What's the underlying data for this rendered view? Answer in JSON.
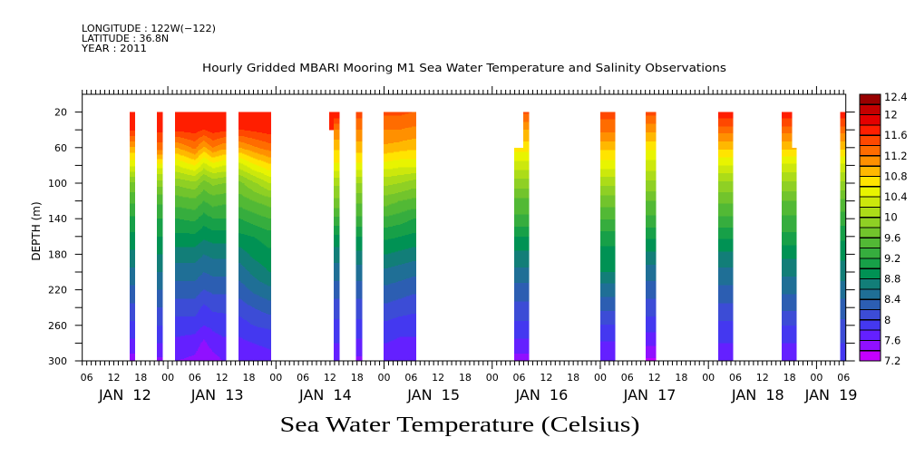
{
  "header": {
    "longitude": "LONGITUDE : 122W(−122)",
    "latitude": "LATITUDE : 36.8N",
    "year": "YEAR : 2011"
  },
  "chart_data": {
    "type": "heatmap",
    "title": "Hourly Gridded MBARI Mooring M1 Sea Water Temperature and Salinity Observations",
    "variable_label": "Sea Water Temperature (Celsius)",
    "xlabel": "",
    "ylabel": "DEPTH (m)",
    "x_unit": "hours since 2011-01-12 00:00",
    "xlim": [
      5,
      174.5
    ],
    "ylim": [
      0,
      300
    ],
    "y_inverted": true,
    "grid": false,
    "legend": "colorbar-right",
    "x_minor_tick_hours": 1,
    "x_major_tick_hours": 24,
    "x_ticks": [
      {
        "hour": 6,
        "label": "06"
      },
      {
        "hour": 12,
        "label": "12"
      },
      {
        "hour": 18,
        "label": "18"
      },
      {
        "hour": 24,
        "label": "00"
      },
      {
        "hour": 30,
        "label": "06"
      },
      {
        "hour": 36,
        "label": "12"
      },
      {
        "hour": 42,
        "label": "18"
      },
      {
        "hour": 48,
        "label": "00"
      },
      {
        "hour": 54,
        "label": "06"
      },
      {
        "hour": 60,
        "label": "12"
      },
      {
        "hour": 66,
        "label": "18"
      },
      {
        "hour": 72,
        "label": "00"
      },
      {
        "hour": 78,
        "label": "06"
      },
      {
        "hour": 84,
        "label": "12"
      },
      {
        "hour": 90,
        "label": "18"
      },
      {
        "hour": 96,
        "label": "00"
      },
      {
        "hour": 102,
        "label": "06"
      },
      {
        "hour": 108,
        "label": "12"
      },
      {
        "hour": 114,
        "label": "18"
      },
      {
        "hour": 120,
        "label": "00"
      },
      {
        "hour": 126,
        "label": "06"
      },
      {
        "hour": 132,
        "label": "12"
      },
      {
        "hour": 138,
        "label": "18"
      },
      {
        "hour": 144,
        "label": "00"
      },
      {
        "hour": 150,
        "label": "06"
      },
      {
        "hour": 156,
        "label": "12"
      },
      {
        "hour": 162,
        "label": "18"
      },
      {
        "hour": 168,
        "label": "00"
      },
      {
        "hour": 174,
        "label": "06"
      }
    ],
    "day_labels": [
      {
        "start_hour": 0,
        "label": "JAN 12"
      },
      {
        "start_hour": 24,
        "label": "JAN 13"
      },
      {
        "start_hour": 48,
        "label": "JAN 14"
      },
      {
        "start_hour": 72,
        "label": "JAN 15"
      },
      {
        "start_hour": 96,
        "label": "JAN 16"
      },
      {
        "start_hour": 120,
        "label": "JAN 17"
      },
      {
        "start_hour": 144,
        "label": "JAN 18"
      },
      {
        "start_hour": 168,
        "label": "JAN 19"
      }
    ],
    "y_ticks": [
      20,
      40,
      60,
      80,
      100,
      120,
      140,
      160,
      180,
      200,
      220,
      240,
      260,
      280,
      300
    ],
    "y_tick_labels": [
      {
        "depth": 20,
        "label": "20"
      },
      {
        "depth": 60,
        "label": "60"
      },
      {
        "depth": 100,
        "label": "100"
      },
      {
        "depth": 140,
        "label": "140"
      },
      {
        "depth": 180,
        "label": "180"
      },
      {
        "depth": 220,
        "label": "220"
      },
      {
        "depth": 260,
        "label": "260"
      },
      {
        "depth": 300,
        "label": "300"
      }
    ],
    "colorbar": {
      "min": 7.2,
      "max": 12.4,
      "step": 0.2,
      "labels": [
        {
          "value": 7.2,
          "label": "7.2"
        },
        {
          "value": 7.6,
          "label": "7.6"
        },
        {
          "value": 8.0,
          "label": "8"
        },
        {
          "value": 8.4,
          "label": "8.4"
        },
        {
          "value": 8.8,
          "label": "8.8"
        },
        {
          "value": 9.2,
          "label": "9.2"
        },
        {
          "value": 9.6,
          "label": "9.6"
        },
        {
          "value": 10.0,
          "label": "10"
        },
        {
          "value": 10.4,
          "label": "10.4"
        },
        {
          "value": 10.8,
          "label": "10.8"
        },
        {
          "value": 11.2,
          "label": "11.2"
        },
        {
          "value": 11.6,
          "label": "11.6"
        },
        {
          "value": 12.0,
          "label": "12"
        },
        {
          "value": 12.4,
          "label": "12.4"
        }
      ],
      "colors": [
        "#c400ff",
        "#9010ff",
        "#6420ff",
        "#4438f0",
        "#3c4cd6",
        "#2c5eb2",
        "#1f6f96",
        "#127e78",
        "#009254",
        "#17a048",
        "#36ad3e",
        "#52b935",
        "#72c42c",
        "#8fd024",
        "#acdc18",
        "#cce80c",
        "#e8f400",
        "#ffe400",
        "#ffb800",
        "#ff9000",
        "#ff6c00",
        "#ff4800",
        "#ff1e00",
        "#e40000",
        "#c40000",
        "#980000"
      ]
    },
    "depths": [
      20,
      40,
      60,
      80,
      100,
      120,
      140,
      160,
      180,
      200,
      220,
      240,
      260,
      280,
      300
    ],
    "segments": [
      {
        "t0": 15.5,
        "t1": 16.7,
        "dmin": 20,
        "dmax": 300,
        "profiles": [
          {
            "t": 16,
            "temps": [
              11.75,
              11.65,
              10.95,
              10.45,
              9.75,
              9.45,
              9.15,
              8.95,
              8.75,
              8.55,
              8.35,
              8.15,
              7.95,
              7.75,
              7.5
            ]
          }
        ]
      },
      {
        "t0": 21.6,
        "t1": 22.8,
        "dmin": 20,
        "dmax": 300,
        "profiles": [
          {
            "t": 22,
            "temps": [
              11.7,
              11.65,
              11.3,
              10.5,
              9.9,
              9.45,
              9.2,
              9.0,
              8.8,
              8.6,
              8.4,
              8.2,
              8.0,
              7.8,
              7.55
            ]
          }
        ]
      },
      {
        "t0": 25.6,
        "t1": 36.9,
        "dmin": 20,
        "dmax": 300,
        "profiles": [
          {
            "t": 26,
            "temps": [
              11.75,
              11.65,
              11.0,
              10.4,
              9.85,
              9.5,
              9.2,
              8.95,
              8.7,
              8.5,
              8.3,
              8.1,
              7.9,
              7.75,
              7.6
            ]
          },
          {
            "t": 30,
            "temps": [
              11.75,
              11.7,
              11.25,
              10.6,
              9.95,
              9.55,
              9.25,
              8.95,
              8.7,
              8.5,
              8.3,
              8.1,
              7.9,
              7.7,
              7.55
            ]
          },
          {
            "t": 32,
            "temps": [
              11.75,
              11.6,
              10.95,
              10.3,
              9.7,
              9.4,
              9.1,
              8.85,
              8.6,
              8.4,
              8.2,
              7.95,
              7.8,
              7.55,
              7.4
            ]
          },
          {
            "t": 34,
            "temps": [
              11.75,
              11.7,
              11.2,
              10.5,
              9.85,
              9.5,
              9.2,
              8.9,
              8.65,
              8.45,
              8.25,
              8.05,
              7.85,
              7.7,
              7.5
            ]
          },
          {
            "t": 36.5,
            "temps": [
              11.75,
              11.65,
              11.05,
              10.4,
              9.8,
              9.45,
              9.2,
              8.9,
              8.65,
              8.45,
              8.25,
              8.05,
              7.9,
              7.75,
              7.62
            ]
          }
        ]
      },
      {
        "t0": 39.7,
        "t1": 46.9,
        "dmin": 20,
        "dmax": 300,
        "profiles": [
          {
            "t": 40,
            "temps": [
              11.75,
              11.6,
              11.0,
              10.3,
              9.75,
              9.5,
              9.2,
              8.95,
              8.7,
              8.5,
              8.3,
              8.1,
              7.9,
              7.75,
              7.6
            ]
          },
          {
            "t": 43,
            "temps": [
              11.75,
              11.65,
              11.15,
              10.55,
              9.95,
              9.6,
              9.3,
              9.0,
              8.85,
              8.65,
              8.45,
              8.2,
              8.0,
              7.8,
              7.65
            ]
          },
          {
            "t": 46.5,
            "temps": [
              11.75,
              11.7,
              11.3,
              10.75,
              10.2,
              9.7,
              9.4,
              9.1,
              8.95,
              8.8,
              8.55,
              8.3,
              8.05,
              7.85,
              7.7
            ]
          }
        ]
      },
      {
        "t0": 59.8,
        "t1": 60.8,
        "dmin": 20,
        "dmax": 40,
        "profiles": [
          {
            "t": 60,
            "temps": [
              11.75,
              11.7,
              11.2,
              10.85,
              10.55,
              10.05,
              9.75,
              9.35,
              8.95,
              8.7,
              8.5,
              8.3,
              8.1,
              7.95,
              7.8
            ]
          }
        ]
      },
      {
        "t0": 60.8,
        "t1": 62.0,
        "dmin": 20,
        "dmax": 300,
        "profiles": [
          {
            "t": 61,
            "temps": [
              11.8,
              11.2,
              10.85,
              10.55,
              10.05,
              9.75,
              9.35,
              8.95,
              8.7,
              8.5,
              8.3,
              8.1,
              7.95,
              7.8,
              7.65
            ]
          }
        ]
      },
      {
        "t0": 65.8,
        "t1": 67.1,
        "dmin": 20,
        "dmax": 300,
        "profiles": [
          {
            "t": 66,
            "temps": [
              11.5,
              11.2,
              10.9,
              10.55,
              10.0,
              9.65,
              9.35,
              9.0,
              8.75,
              8.5,
              8.3,
              8.1,
              7.95,
              7.75,
              7.55
            ]
          }
        ]
      },
      {
        "t0": 71.9,
        "t1": 79.1,
        "dmin": 20,
        "dmax": 300,
        "profiles": [
          {
            "t": 72.5,
            "temps": [
              11.45,
              11.2,
              10.95,
              10.5,
              10.05,
              9.7,
              9.35,
              9.05,
              8.8,
              8.55,
              8.35,
              8.15,
              7.95,
              7.8,
              7.7
            ]
          },
          {
            "t": 75.5,
            "temps": [
              11.45,
              11.2,
              10.9,
              10.45,
              10.0,
              9.6,
              9.3,
              9.0,
              8.75,
              8.5,
              8.3,
              8.1,
              7.9,
              7.75,
              7.65
            ]
          },
          {
            "t": 78.5,
            "temps": [
              11.4,
              11.15,
              10.85,
              10.45,
              9.9,
              9.55,
              9.2,
              8.95,
              8.7,
              8.45,
              8.25,
              8.05,
              7.9,
              7.75,
              7.6
            ]
          }
        ]
      },
      {
        "t0": 100.9,
        "t1": 102.9,
        "dmin": 60,
        "dmax": 300,
        "profiles": [
          {
            "t": 102,
            "temps": [
              11.45,
              11.0,
              10.7,
              10.3,
              9.9,
              9.55,
              9.35,
              9.0,
              8.75,
              8.55,
              8.3,
              8.15,
              7.95,
              7.75,
              7.5
            ]
          }
        ]
      },
      {
        "t0": 102.9,
        "t1": 104.1,
        "dmin": 20,
        "dmax": 300,
        "profiles": [
          {
            "t": 103.5,
            "temps": [
              11.45,
              11.0,
              10.7,
              10.3,
              9.9,
              9.55,
              9.35,
              9.0,
              8.75,
              8.55,
              8.3,
              8.15,
              7.95,
              7.75,
              7.5
            ]
          }
        ]
      },
      {
        "t0": 120.0,
        "t1": 123.2,
        "dmin": 20,
        "dmax": 300,
        "profiles": [
          {
            "t": 121.5,
            "temps": [
              11.5,
              11.25,
              10.85,
              10.5,
              10.05,
              9.7,
              9.42,
              9.1,
              8.92,
              8.8,
              8.5,
              8.25,
              7.98,
              7.78,
              7.62
            ]
          }
        ]
      },
      {
        "t0": 130.1,
        "t1": 132.3,
        "dmin": 20,
        "dmax": 300,
        "profiles": [
          {
            "t": 131,
            "temps": [
              11.5,
              11.05,
              10.65,
              10.3,
              9.95,
              9.6,
              9.35,
              9.05,
              8.75,
              8.5,
              8.3,
              8.1,
              7.9,
              7.65,
              7.35
            ]
          }
        ]
      },
      {
        "t0": 146.2,
        "t1": 149.4,
        "dmin": 20,
        "dmax": 300,
        "profiles": [
          {
            "t": 147.8,
            "temps": [
              11.75,
              11.3,
              10.85,
              10.4,
              9.95,
              9.65,
              9.35,
              9.05,
              8.75,
              8.55,
              8.35,
              8.15,
              7.95,
              7.8,
              7.6
            ]
          }
        ]
      },
      {
        "t0": 160.3,
        "t1": 162.5,
        "dmin": 20,
        "dmax": 300,
        "profiles": [
          {
            "t": 161.5,
            "temps": [
              11.75,
              11.3,
              10.85,
              10.35,
              9.95,
              9.6,
              9.35,
              9.15,
              8.85,
              8.65,
              8.45,
              8.25,
              8.0,
              7.8,
              7.65
            ]
          }
        ]
      },
      {
        "t0": 162.5,
        "t1": 163.5,
        "dmin": 60,
        "dmax": 300,
        "profiles": [
          {
            "t": 163,
            "temps": [
              11.75,
              11.3,
              10.85,
              10.35,
              9.95,
              9.6,
              9.35,
              9.15,
              8.85,
              8.65,
              8.45,
              8.25,
              8.0,
              7.8,
              7.65
            ]
          }
        ]
      },
      {
        "t0": 173.3,
        "t1": 174.5,
        "dmin": 20,
        "dmax": 300,
        "profiles": [
          {
            "t": 174,
            "temps": [
              11.75,
              11.3,
              10.85,
              10.35,
              9.95,
              9.55,
              9.3,
              9.05,
              8.85,
              8.7,
              8.5,
              8.3,
              8.15,
              8.0,
              7.85
            ]
          }
        ]
      }
    ]
  }
}
